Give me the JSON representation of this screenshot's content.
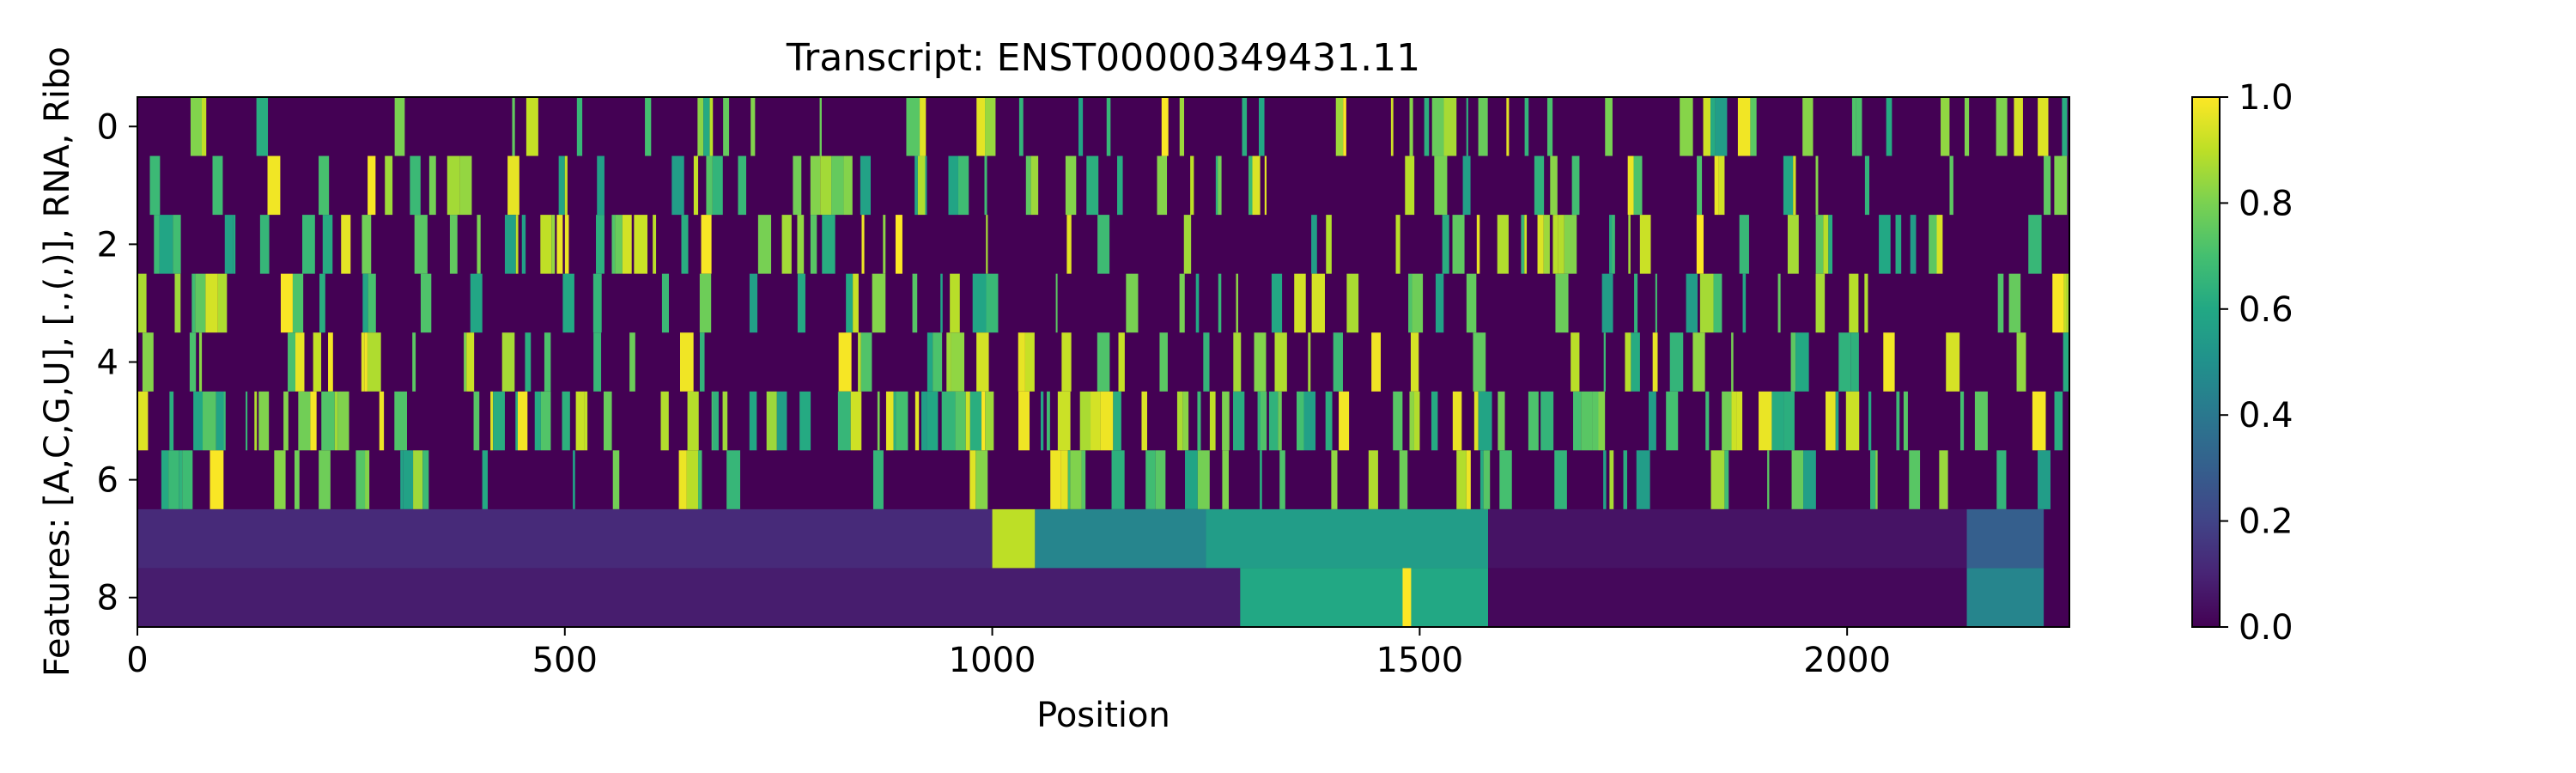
{
  "chart_data": {
    "type": "heatmap",
    "title": "Transcript: ENST00000349431.11",
    "xlabel": "Position",
    "ylabel": "Features: [A,C,G,U], [.,(,)], RNA, Ribo",
    "x_range": [
      0,
      2260
    ],
    "y_range": [
      8.5,
      -0.5
    ],
    "x_ticks": [
      0,
      500,
      1000,
      1500,
      2000
    ],
    "y_ticks": [
      0,
      2,
      4,
      6,
      8
    ],
    "n_rows": 9,
    "value_range": [
      0.0,
      1.0
    ],
    "colormap": "viridis",
    "colorbar": {
      "ticks": [
        "0.0",
        "0.2",
        "0.4",
        "0.6",
        "0.8",
        "1.0"
      ],
      "values": [
        0,
        0.2,
        0.4,
        0.6,
        0.8,
        1.0
      ]
    },
    "rows": [
      {
        "index": 0,
        "pattern": "one-hot nucleotide",
        "density": 0.25
      },
      {
        "index": 1,
        "pattern": "one-hot nucleotide",
        "density": 0.25
      },
      {
        "index": 2,
        "pattern": "one-hot nucleotide",
        "density": 0.25
      },
      {
        "index": 3,
        "pattern": "one-hot nucleotide",
        "density": 0.25
      },
      {
        "index": 4,
        "pattern": "one-hot structure",
        "density": 0.3
      },
      {
        "index": 5,
        "pattern": "one-hot structure",
        "density": 0.45
      },
      {
        "index": 6,
        "pattern": "one-hot structure",
        "density": 0.25
      },
      {
        "index": 7,
        "pattern": "RNA coverage",
        "segments": [
          {
            "start": 0,
            "end": 1000,
            "value": 0.12
          },
          {
            "start": 1000,
            "end": 1050,
            "value": 0.9
          },
          {
            "start": 1050,
            "end": 1250,
            "value": 0.45
          },
          {
            "start": 1250,
            "end": 1580,
            "value": 0.55
          },
          {
            "start": 1580,
            "end": 2140,
            "value": 0.05
          },
          {
            "start": 2140,
            "end": 2230,
            "value": 0.3
          }
        ]
      },
      {
        "index": 8,
        "pattern": "Ribo coverage",
        "segments": [
          {
            "start": 0,
            "end": 1290,
            "value": 0.08
          },
          {
            "start": 1290,
            "end": 1580,
            "value": 0.6
          },
          {
            "start": 1480,
            "end": 1490,
            "value": 1.0
          },
          {
            "start": 1580,
            "end": 2140,
            "value": 0.02
          },
          {
            "start": 2140,
            "end": 2230,
            "value": 0.45
          }
        ]
      }
    ]
  }
}
